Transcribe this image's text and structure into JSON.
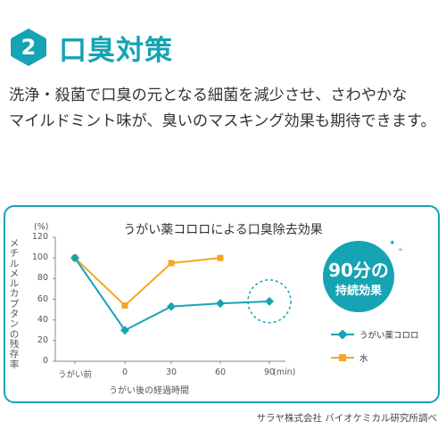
{
  "header": {
    "number": "2",
    "title": "口臭対策"
  },
  "description": {
    "line1": "洗浄・殺菌で口臭の元となる細菌を減少させ、さわやかな",
    "line2": "マイルドミント味が、臭いのマスキング効果も期待できます。"
  },
  "chart_data": {
    "type": "line",
    "title": "うがい薬コロロによる口臭除去効果",
    "ylabel": "メチルメルカプタンの残存率",
    "y_unit": "(%)",
    "xlabel": "うがい後の経過時間",
    "x_unit": "(min)",
    "x": [
      "うがい前",
      "0",
      "30",
      "60",
      "90"
    ],
    "ylim": [
      0,
      120
    ],
    "yticks": [
      "0",
      "20",
      "40",
      "60",
      "80",
      "100",
      "120"
    ],
    "series": [
      {
        "name": "うがい薬コロロ",
        "color": "#16a3b3",
        "marker": "diamond",
        "values": [
          100,
          30,
          53,
          56,
          58
        ]
      },
      {
        "name": "水",
        "color": "#f5a623",
        "marker": "square",
        "values": [
          100,
          54,
          95,
          100,
          null
        ]
      }
    ],
    "annotation": {
      "line1": "90分の",
      "line2": "持続効果"
    },
    "legend_position": "right"
  },
  "footnote": "サラヤ株式会社 バイオケミカル研究所調べ",
  "colors": {
    "accent": "#16a3b3",
    "water": "#f5a623"
  }
}
